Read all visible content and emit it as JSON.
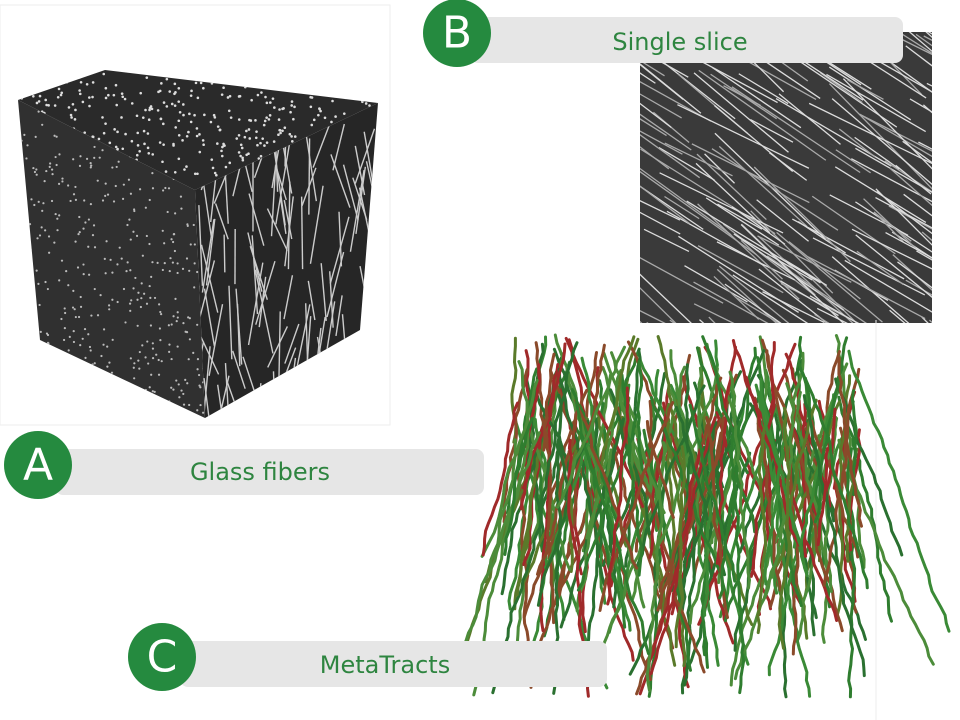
{
  "panels": [
    {
      "letter": "A",
      "label": "Glass fibers"
    },
    {
      "letter": "B",
      "label": "Single slice"
    },
    {
      "letter": "C",
      "label": "MetaTracts"
    }
  ]
}
